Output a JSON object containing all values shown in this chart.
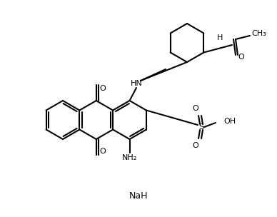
{
  "bg_color": "#ffffff",
  "line_color": "#000000",
  "line_width": 1.5,
  "font_size": 8,
  "figsize": [
    3.88,
    3.04
  ],
  "dpi": 100,
  "NaH_text": "NaH",
  "NH_text": "HN",
  "NH2_text": "NH₂",
  "O_text": "O",
  "S_text": "S",
  "OH_text": "OH",
  "H_text": "H",
  "CH3_text": "CH₃"
}
